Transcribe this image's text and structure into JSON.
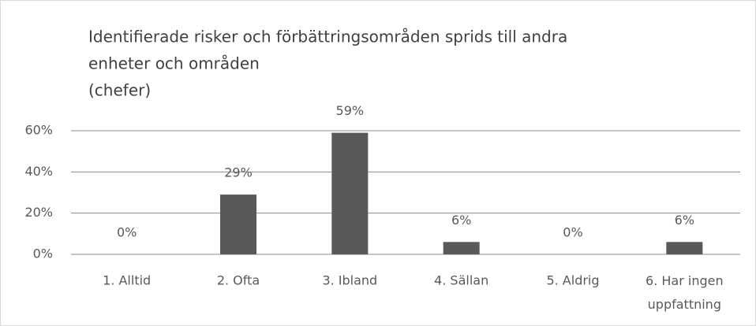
{
  "chart_data": {
    "type": "bar",
    "title": [
      "Identifierade risker och förbättringsområden sprids till andra",
      "enheter och områden",
      "(chefer)"
    ],
    "categories": [
      "1. Alltid",
      "2. Ofta",
      "3. Ibland",
      "4. Sällan",
      "5. Aldrig",
      "6. Har ingen uppfattning"
    ],
    "values": [
      0,
      29,
      59,
      6,
      0,
      6
    ],
    "value_labels": [
      "0%",
      "29%",
      "59%",
      "6%",
      "0%",
      "6%"
    ],
    "color": "#595959",
    "ylim": [
      0,
      60
    ],
    "yticks": [
      {
        "value": 0,
        "label": "0%"
      },
      {
        "value": 20,
        "label": "20%"
      },
      {
        "value": 40,
        "label": "40%"
      },
      {
        "value": 60,
        "label": "60%"
      }
    ],
    "grid": true
  }
}
